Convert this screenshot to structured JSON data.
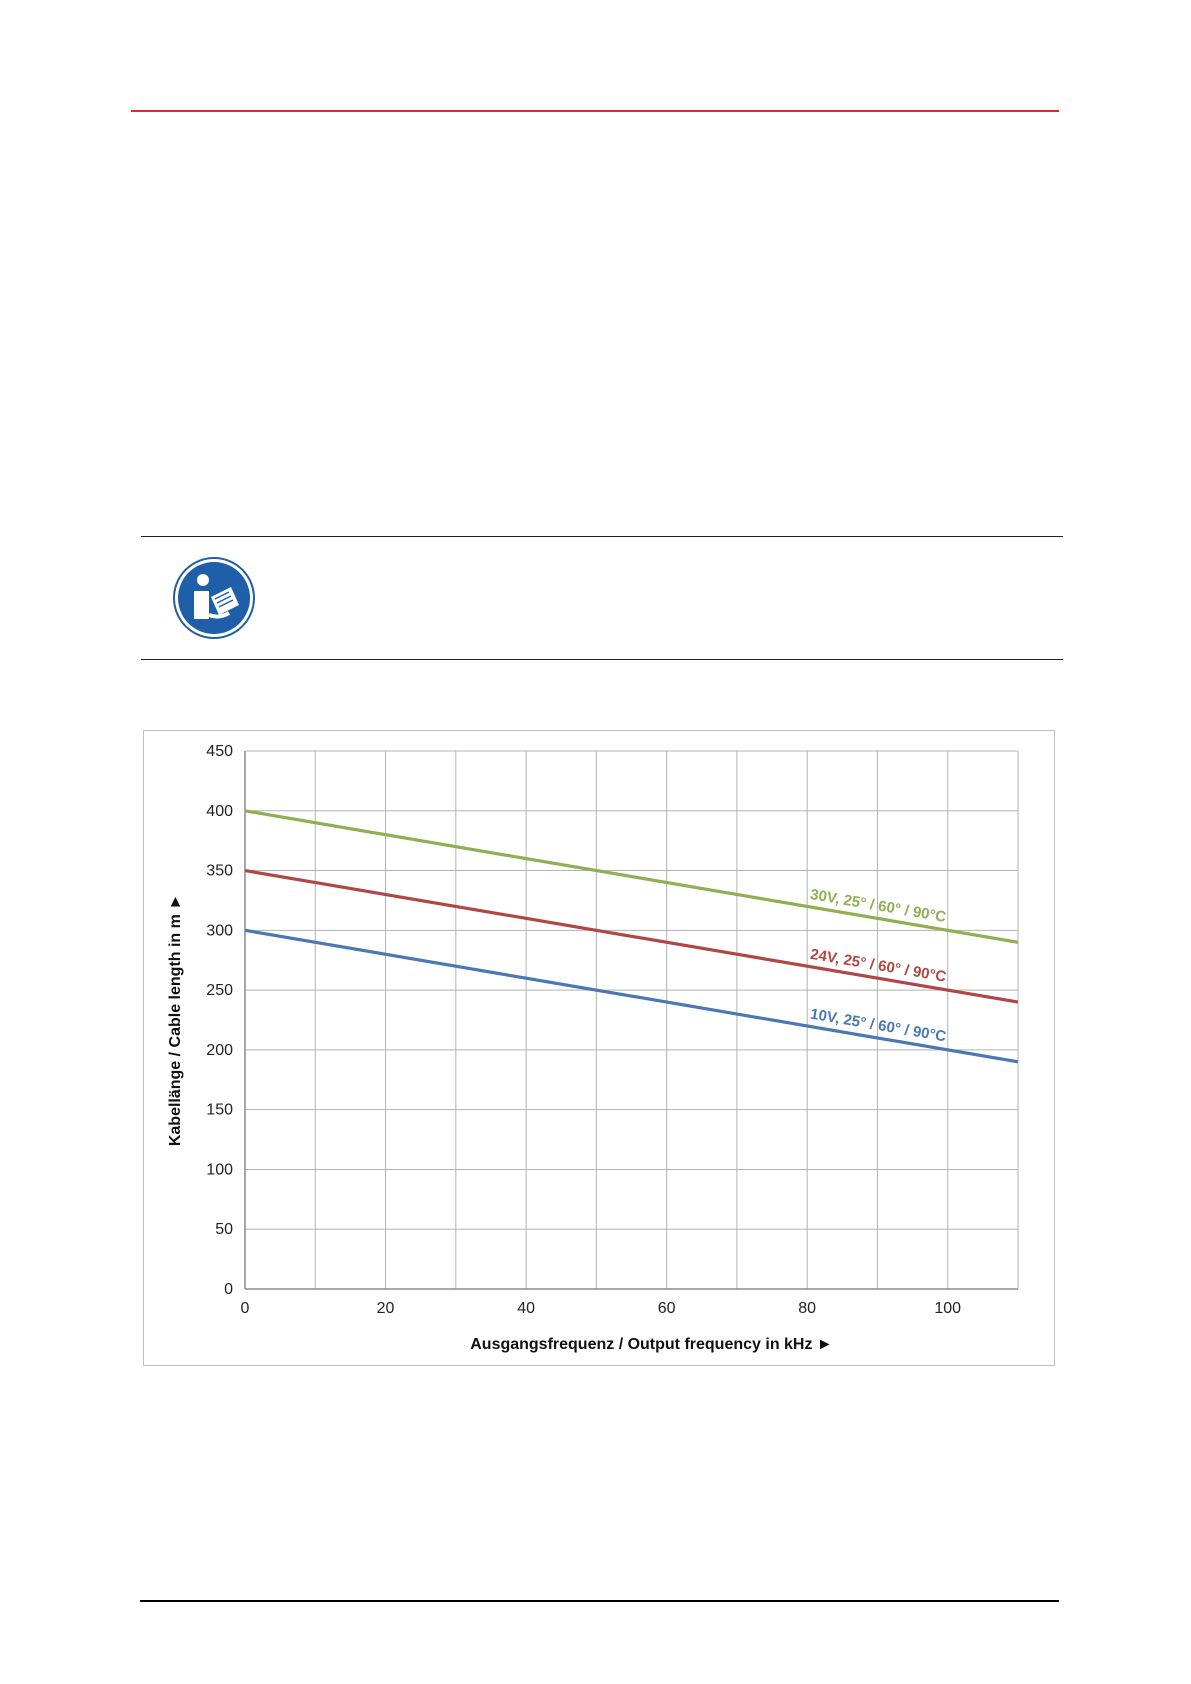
{
  "colors": {
    "header_rule": "#e3262d",
    "note_icon_blue": "#1f5ea8"
  },
  "note": {
    "icon": "read-manual-icon"
  },
  "chart_data": {
    "type": "line",
    "xlabel": "Ausgangsfrequenz / Output frequency in kHz ►",
    "ylabel": "Kabellänge / Cable length in m ►",
    "xlim": [
      0,
      110
    ],
    "ylim": [
      0,
      450
    ],
    "x_ticks": [
      0,
      20,
      40,
      60,
      80,
      100
    ],
    "y_ticks": [
      0,
      50,
      100,
      150,
      200,
      250,
      300,
      350,
      400,
      450
    ],
    "x_minor_grid_step": 10,
    "grid": true,
    "series": [
      {
        "name": "30V, 25° / 60° / 90°C",
        "color": "#8faf52",
        "x": [
          0,
          110
        ],
        "y": [
          400,
          290
        ]
      },
      {
        "name": "24V, 25° / 60° / 90°C",
        "color": "#b04745",
        "x": [
          0,
          110
        ],
        "y": [
          350,
          240
        ]
      },
      {
        "name": "10V, 25° / 60° / 90°C",
        "color": "#4a78b2",
        "x": [
          0,
          110
        ],
        "y": [
          300,
          190
        ]
      }
    ]
  }
}
